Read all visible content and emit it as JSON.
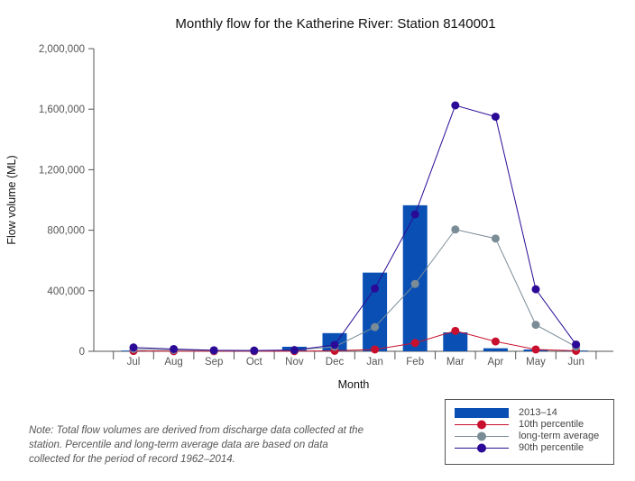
{
  "chart_data": {
    "type": "bar",
    "title": "Monthly flow for the Katherine River: Station 8140001",
    "xlabel": "Month",
    "ylabel": "Flow volume (ML)",
    "ylim": [
      0,
      2000000
    ],
    "yticks": [
      0,
      400000,
      800000,
      1200000,
      1600000,
      2000000
    ],
    "ytick_labels": [
      "0",
      "400,000",
      "800,000",
      "1,200,000",
      "1,600,000",
      "2,000,000"
    ],
    "categories": [
      "Jul",
      "Aug",
      "Sep",
      "Oct",
      "Nov",
      "Dec",
      "Jan",
      "Feb",
      "Mar",
      "Apr",
      "May",
      "Jun"
    ],
    "grid": false,
    "legend_position": "bottom-right",
    "series": [
      {
        "name": "2013–14",
        "kind": "bar",
        "color": "#0a50b4",
        "values": [
          5000,
          3000,
          2000,
          2000,
          30000,
          120000,
          520000,
          965000,
          125000,
          20000,
          12000,
          5000
        ]
      },
      {
        "name": "10th percentile",
        "kind": "line",
        "color": "#c8102e",
        "values": [
          2000,
          1000,
          500,
          500,
          1000,
          3000,
          12000,
          55000,
          135000,
          65000,
          12000,
          3000
        ]
      },
      {
        "name": "long-term average",
        "kind": "line",
        "color": "#7a8c96",
        "values": [
          15000,
          9000,
          5000,
          4000,
          8000,
          30000,
          160000,
          445000,
          805000,
          745000,
          175000,
          30000
        ]
      },
      {
        "name": "90th percentile",
        "kind": "line",
        "color": "#2a0a96",
        "values": [
          25000,
          15000,
          7000,
          5000,
          8000,
          42000,
          415000,
          905000,
          1625000,
          1550000,
          410000,
          45000
        ]
      }
    ]
  },
  "note": "Note: Total flow volumes are derived from discharge data collected at the station. Percentile and long-term average data are based on data collected for the period of record 1962–2014."
}
